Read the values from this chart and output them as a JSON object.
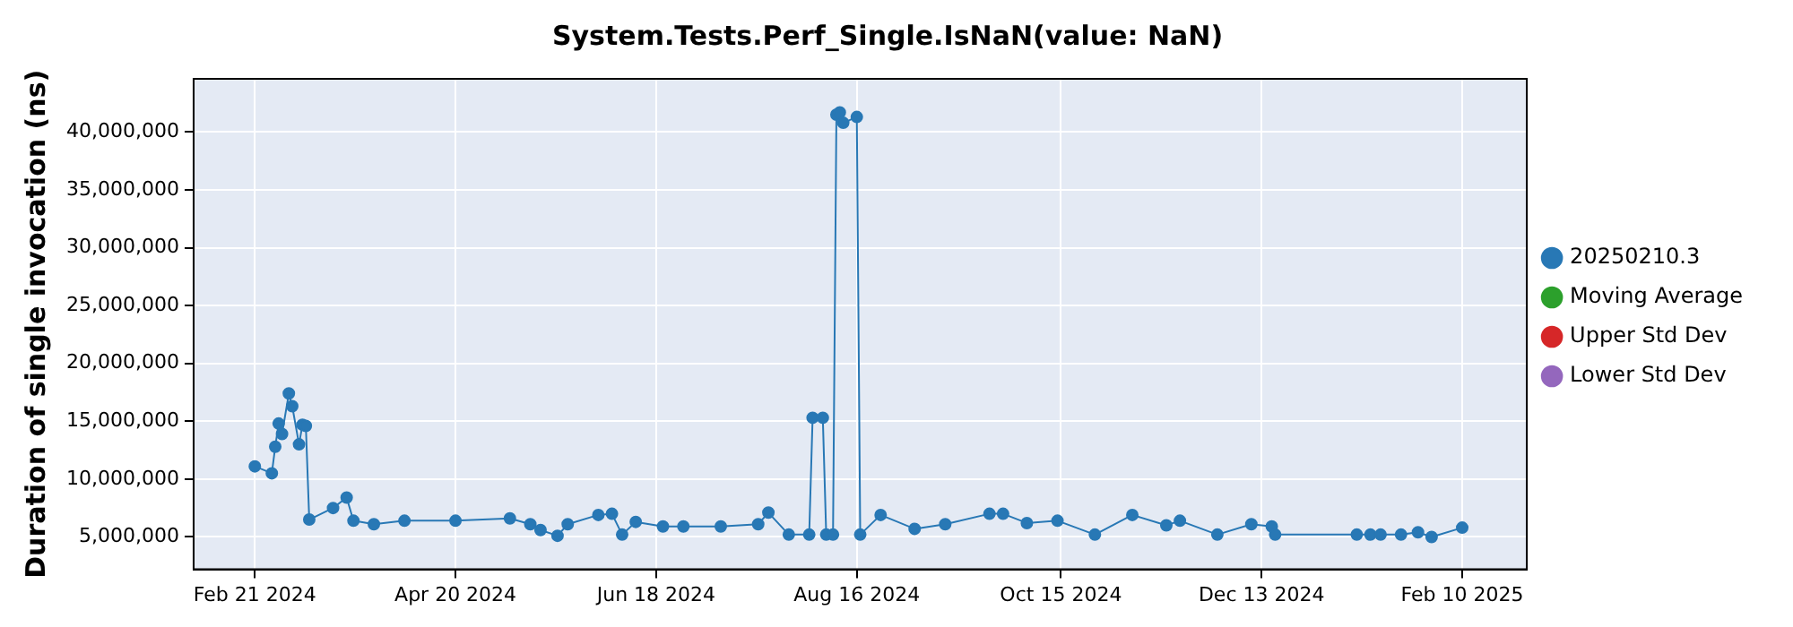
{
  "chart_data": {
    "type": "line",
    "title": "System.Tests.Perf_Single.IsNaN(value: NaN)",
    "ylabel": "Duration of single invocation (ns)",
    "xlim": [
      "2024-02-03",
      "2025-03-01"
    ],
    "xticks": [
      {
        "value": "2024-02-21",
        "label": "Feb 21 2024"
      },
      {
        "value": "2024-04-20",
        "label": "Apr 20 2024"
      },
      {
        "value": "2024-06-18",
        "label": "Jun 18 2024"
      },
      {
        "value": "2024-08-16",
        "label": "Aug 16 2024"
      },
      {
        "value": "2024-10-15",
        "label": "Oct 15 2024"
      },
      {
        "value": "2024-12-13",
        "label": "Dec 13 2024"
      },
      {
        "value": "2025-02-10",
        "label": "Feb 10 2025"
      }
    ],
    "ylim": [
      2200000,
      44600000
    ],
    "yticks": [
      {
        "value": 5000000,
        "label": "5,000,000"
      },
      {
        "value": 10000000,
        "label": "10,000,000"
      },
      {
        "value": 15000000,
        "label": "15,000,000"
      },
      {
        "value": 20000000,
        "label": "20,000,000"
      },
      {
        "value": 25000000,
        "label": "25,000,000"
      },
      {
        "value": 30000000,
        "label": "30,000,000"
      },
      {
        "value": 35000000,
        "label": "35,000,000"
      },
      {
        "value": 40000000,
        "label": "40,000,000"
      }
    ],
    "grid": true,
    "legend": "right",
    "marker": "circle",
    "line_style": "solid",
    "series": [
      {
        "name": "20250210.3",
        "color": "#2878b5",
        "x": [
          "2024-02-21",
          "2024-02-26",
          "2024-02-27",
          "2024-02-28",
          "2024-02-29",
          "2024-03-02",
          "2024-03-03",
          "2024-03-05",
          "2024-03-06",
          "2024-03-07",
          "2024-03-08",
          "2024-03-15",
          "2024-03-19",
          "2024-03-21",
          "2024-03-27",
          "2024-04-05",
          "2024-04-20",
          "2024-05-06",
          "2024-05-12",
          "2024-05-15",
          "2024-05-20",
          "2024-05-23",
          "2024-06-01",
          "2024-06-05",
          "2024-06-08",
          "2024-06-12",
          "2024-06-20",
          "2024-06-26",
          "2024-07-07",
          "2024-07-18",
          "2024-07-21",
          "2024-07-27",
          "2024-08-02",
          "2024-08-03",
          "2024-08-06",
          "2024-08-07",
          "2024-08-09",
          "2024-08-10",
          "2024-08-11",
          "2024-08-12",
          "2024-08-16",
          "2024-08-17",
          "2024-08-23",
          "2024-09-02",
          "2024-09-11",
          "2024-09-24",
          "2024-09-28",
          "2024-10-05",
          "2024-10-14",
          "2024-10-25",
          "2024-11-05",
          "2024-11-15",
          "2024-11-19",
          "2024-11-30",
          "2024-12-10",
          "2024-12-16",
          "2024-12-17",
          "2025-01-10",
          "2025-01-14",
          "2025-01-17",
          "2025-01-23",
          "2025-01-28",
          "2025-02-01",
          "2025-02-10"
        ],
        "values": [
          11100000,
          10500000,
          12800000,
          14800000,
          13900000,
          17400000,
          16300000,
          13000000,
          14700000,
          14600000,
          6500000,
          7500000,
          8400000,
          6400000,
          6100000,
          6400000,
          6400000,
          6600000,
          6100000,
          5600000,
          5100000,
          6100000,
          6900000,
          7000000,
          5200000,
          6300000,
          5900000,
          5900000,
          5900000,
          6100000,
          7100000,
          5200000,
          5200000,
          15300000,
          15300000,
          5200000,
          5200000,
          41500000,
          41700000,
          40800000,
          41300000,
          5200000,
          6900000,
          5700000,
          6100000,
          7000000,
          7000000,
          6200000,
          6400000,
          5200000,
          6900000,
          6000000,
          6400000,
          5200000,
          6100000,
          5900000,
          5200000,
          5200000,
          5200000,
          5200000,
          5200000,
          5400000,
          5000000,
          5800000
        ]
      },
      {
        "name": "Moving Average",
        "color": "#2ca02c"
      },
      {
        "name": "Upper Std Dev",
        "color": "#d62728"
      },
      {
        "name": "Lower Std Dev",
        "color": "#9467bd"
      }
    ]
  }
}
